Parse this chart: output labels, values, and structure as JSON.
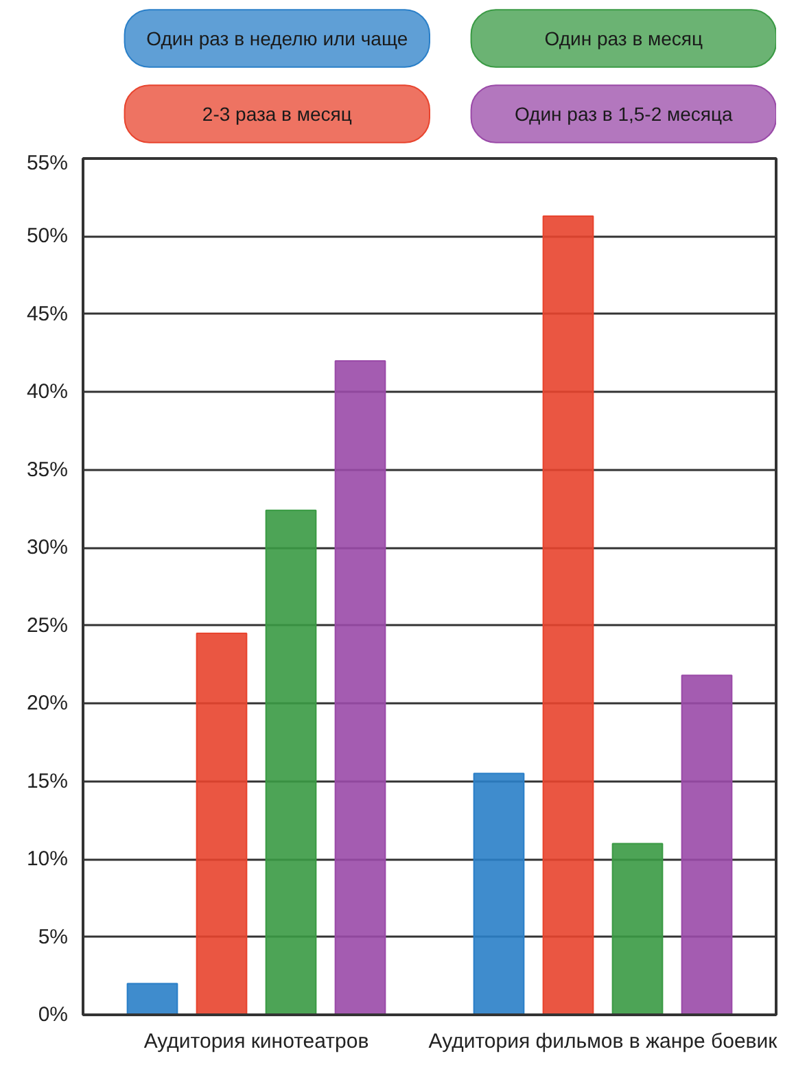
{
  "chart_data": {
    "type": "bar",
    "categories": [
      "Аудитория кинотеатров",
      "Аудитория фильмов в жанре боевик"
    ],
    "series": [
      {
        "name": "Один раз в неделю или чаще",
        "color": "#2a7fc8",
        "values": [
          2,
          15.5
        ]
      },
      {
        "name": "2-3 раза в месяц",
        "color": "#e8442e",
        "values": [
          24.5,
          51.3
        ]
      },
      {
        "name": "Один раз в месяц",
        "color": "#3a9a44",
        "values": [
          32.4,
          11
        ]
      },
      {
        "name": "Один раз в 1,5-2 месяца",
        "color": "#9a4aa8",
        "values": [
          42,
          21.8
        ]
      }
    ],
    "ylim": [
      0,
      55
    ],
    "yticks": [
      {
        "value": 0,
        "label": "0%"
      },
      {
        "value": 5,
        "label": "5%"
      },
      {
        "value": 10,
        "label": "10%"
      },
      {
        "value": 15,
        "label": "15%"
      },
      {
        "value": 20,
        "label": "20%"
      },
      {
        "value": 25,
        "label": "25%"
      },
      {
        "value": 30,
        "label": "30%"
      },
      {
        "value": 35,
        "label": "35%"
      },
      {
        "value": 40,
        "label": "40%"
      },
      {
        "value": 45,
        "label": "45%"
      },
      {
        "value": 50,
        "label": "50%"
      },
      {
        "value": 55,
        "label": "55%"
      }
    ],
    "grid": "y",
    "legend": "top"
  }
}
